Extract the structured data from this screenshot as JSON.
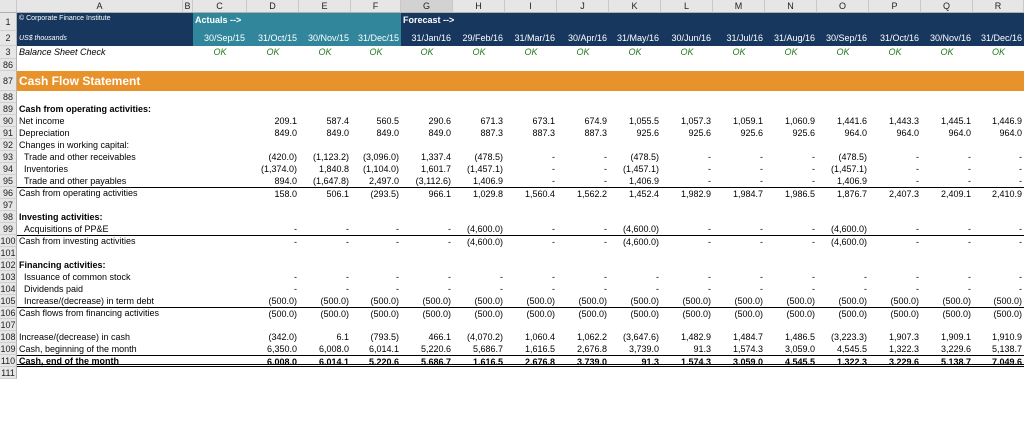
{
  "columns": [
    "A",
    "B",
    "C",
    "D",
    "E",
    "F",
    "G",
    "H",
    "I",
    "J",
    "K",
    "L",
    "M",
    "N",
    "O",
    "P",
    "Q",
    "R"
  ],
  "selected_column": "G",
  "header": {
    "company": "© Corporate Finance Institute",
    "units": "US$ thousands",
    "actuals_label": "Actuals -->",
    "forecast_label": "Forecast -->",
    "dates": [
      "30/Sep/15",
      "31/Oct/15",
      "30/Nov/15",
      "31/Dec/15",
      "31/Jan/16",
      "29/Feb/16",
      "31/Mar/16",
      "30/Apr/16",
      "31/May/16",
      "30/Jun/16",
      "31/Jul/16",
      "31/Aug/16",
      "30/Sep/16",
      "31/Oct/16",
      "30/Nov/16",
      "31/Dec/16"
    ]
  },
  "check_row": {
    "label": "Balance Sheet Check",
    "value": "OK"
  },
  "section_title": "Cash Flow Statement",
  "rows": [
    {
      "n": "86",
      "label": "",
      "vals": []
    },
    {
      "n": "87",
      "label": "",
      "vals": []
    },
    {
      "n": "88",
      "label": "",
      "vals": []
    },
    {
      "n": "89",
      "label": "Cash from operating activities:",
      "bold": true,
      "vals": []
    },
    {
      "n": "90",
      "label": "Net income",
      "vals": [
        "209.1",
        "587.4",
        "560.5",
        "290.6",
        "671.3",
        "673.1",
        "674.9",
        "1,055.5",
        "1,057.3",
        "1,059.1",
        "1,060.9",
        "1,441.6",
        "1,443.3",
        "1,445.1",
        "1,446.9"
      ]
    },
    {
      "n": "91",
      "label": "Depreciation",
      "vals": [
        "849.0",
        "849.0",
        "849.0",
        "849.0",
        "887.3",
        "887.3",
        "887.3",
        "925.6",
        "925.6",
        "925.6",
        "925.6",
        "964.0",
        "964.0",
        "964.0",
        "964.0"
      ]
    },
    {
      "n": "92",
      "label": "Changes in working capital:",
      "vals": []
    },
    {
      "n": "93",
      "label": "  Trade and other receivables",
      "vals": [
        "(420.0)",
        "(1,123.2)",
        "(3,096.0)",
        "1,337.4",
        "(478.5)",
        "-",
        "-",
        "(478.5)",
        "-",
        "-",
        "-",
        "(478.5)",
        "-",
        "-",
        "-"
      ]
    },
    {
      "n": "94",
      "label": "  Inventories",
      "vals": [
        "(1,374.0)",
        "1,840.8",
        "(1,104.0)",
        "1,601.7",
        "(1,457.1)",
        "-",
        "-",
        "(1,457.1)",
        "-",
        "-",
        "-",
        "(1,457.1)",
        "-",
        "-",
        "-"
      ]
    },
    {
      "n": "95",
      "label": "  Trade and other payables",
      "vals": [
        "894.0",
        "(1,647.8)",
        "2,497.0",
        "(3,112.6)",
        "1,406.9",
        "-",
        "-",
        "1,406.9",
        "-",
        "-",
        "-",
        "1,406.9",
        "-",
        "-",
        "-"
      ]
    },
    {
      "n": "96",
      "label": "Cash from operating activities",
      "total": true,
      "vals": [
        "158.0",
        "506.1",
        "(293.5)",
        "966.1",
        "1,029.8",
        "1,560.4",
        "1,562.2",
        "1,452.4",
        "1,982.9",
        "1,984.7",
        "1,986.5",
        "1,876.7",
        "2,407.3",
        "2,409.1",
        "2,410.9"
      ]
    },
    {
      "n": "97",
      "label": "",
      "vals": []
    },
    {
      "n": "98",
      "label": "Investing activities:",
      "bold": true,
      "vals": []
    },
    {
      "n": "99",
      "label": "  Acquisitions of PP&E",
      "vals": [
        "-",
        "-",
        "-",
        "-",
        "(4,600.0)",
        "-",
        "-",
        "(4,600.0)",
        "-",
        "-",
        "-",
        "(4,600.0)",
        "-",
        "-",
        "-"
      ]
    },
    {
      "n": "100",
      "label": "Cash from investing activities",
      "total": true,
      "vals": [
        "-",
        "-",
        "-",
        "-",
        "(4,600.0)",
        "-",
        "-",
        "(4,600.0)",
        "-",
        "-",
        "-",
        "(4,600.0)",
        "-",
        "-",
        "-"
      ]
    },
    {
      "n": "101",
      "label": "",
      "vals": []
    },
    {
      "n": "102",
      "label": "Financing activities:",
      "bold": true,
      "vals": []
    },
    {
      "n": "103",
      "label": "  Issuance of common stock",
      "vals": [
        "-",
        "-",
        "-",
        "-",
        "-",
        "-",
        "-",
        "-",
        "-",
        "-",
        "-",
        "-",
        "-",
        "-",
        "-"
      ]
    },
    {
      "n": "104",
      "label": "  Dividends paid",
      "vals": [
        "-",
        "-",
        "-",
        "-",
        "-",
        "-",
        "-",
        "-",
        "-",
        "-",
        "-",
        "-",
        "-",
        "-",
        "-"
      ]
    },
    {
      "n": "105",
      "label": "  Increase/(decrease) in term debt",
      "vals": [
        "(500.0)",
        "(500.0)",
        "(500.0)",
        "(500.0)",
        "(500.0)",
        "(500.0)",
        "(500.0)",
        "(500.0)",
        "(500.0)",
        "(500.0)",
        "(500.0)",
        "(500.0)",
        "(500.0)",
        "(500.0)",
        "(500.0)"
      ]
    },
    {
      "n": "106",
      "label": "Cash flows from financing activities",
      "total": true,
      "vals": [
        "(500.0)",
        "(500.0)",
        "(500.0)",
        "(500.0)",
        "(500.0)",
        "(500.0)",
        "(500.0)",
        "(500.0)",
        "(500.0)",
        "(500.0)",
        "(500.0)",
        "(500.0)",
        "(500.0)",
        "(500.0)",
        "(500.0)"
      ]
    },
    {
      "n": "107",
      "label": "",
      "vals": []
    },
    {
      "n": "108",
      "label": "Increase/(decrease) in cash",
      "vals": [
        "(342.0)",
        "6.1",
        "(793.5)",
        "466.1",
        "(4,070.2)",
        "1,060.4",
        "1,062.2",
        "(3,647.6)",
        "1,482.9",
        "1,484.7",
        "1,486.5",
        "(3,223.3)",
        "1,907.3",
        "1,909.1",
        "1,910.9"
      ]
    },
    {
      "n": "109",
      "label": "Cash, beginning of the month",
      "vals": [
        "6,350.0",
        "6,008.0",
        "6,014.1",
        "5,220.6",
        "5,686.7",
        "1,616.5",
        "2,676.8",
        "3,739.0",
        "91.3",
        "1,574.3",
        "3,059.0",
        "4,545.5",
        "1,322.3",
        "3,229.6",
        "5,138.7"
      ]
    },
    {
      "n": "110",
      "label": "Cash, end of the month",
      "grand": true,
      "vals": [
        "6,008.0",
        "6,014.1",
        "5,220.6",
        "5,686.7",
        "1,616.5",
        "2,676.8",
        "3,739.0",
        "91.3",
        "1,574.3",
        "3,059.0",
        "4,545.5",
        "1,322.3",
        "3,229.6",
        "5,138.7",
        "7,049.6"
      ]
    },
    {
      "n": "111",
      "label": "",
      "vals": []
    }
  ]
}
